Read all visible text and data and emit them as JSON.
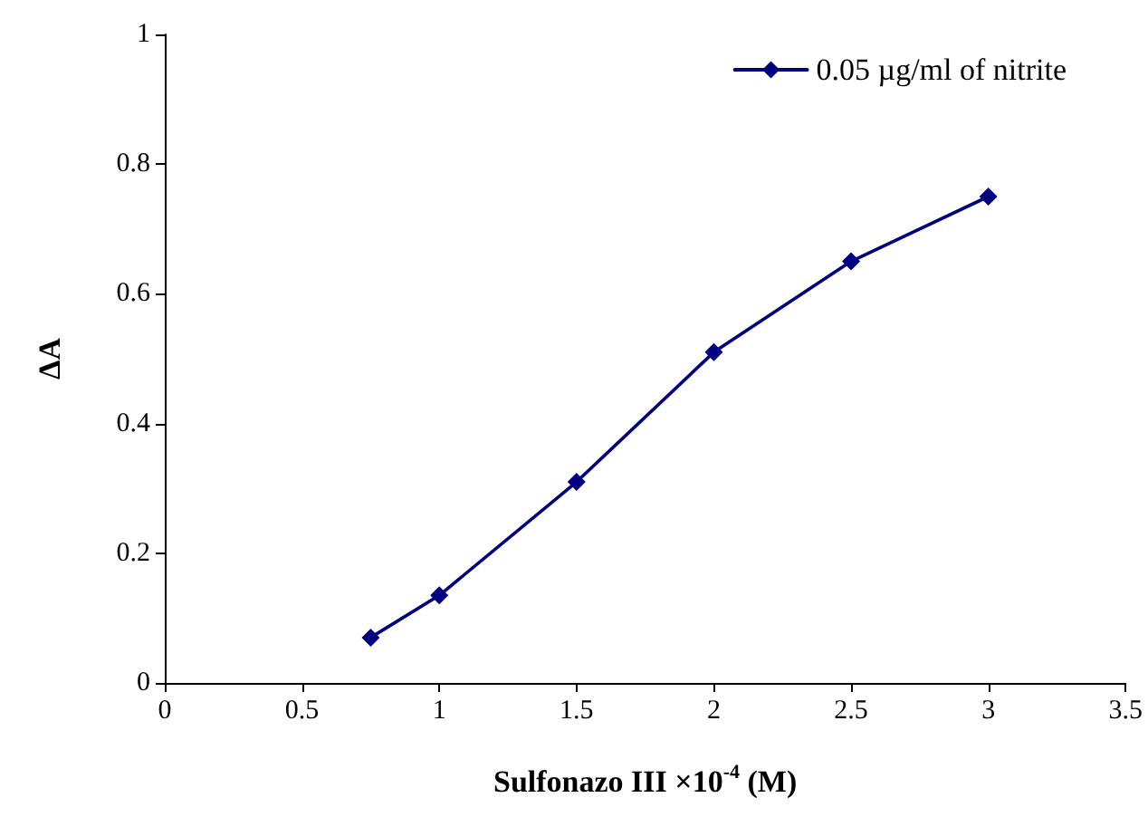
{
  "chart_data": {
    "type": "line",
    "xlabel": "Sulfonazo III ×10$^{-4}$ (M)",
    "ylabel": "ΔA",
    "x": [
      0.75,
      1,
      1.5,
      2,
      2.5,
      3
    ],
    "series": [
      {
        "name": "0.05 µg/ml of nitrite",
        "color": "#000080",
        "values": [
          0.07,
          0.135,
          0.31,
          0.51,
          0.65,
          0.75
        ]
      }
    ],
    "xlim": [
      0,
      3.5
    ],
    "xticks": [
      0,
      0.5,
      1,
      1.5,
      2,
      2.5,
      3,
      3.5
    ],
    "ylim": [
      0,
      1
    ],
    "yticks": [
      0,
      0.2,
      0.4,
      0.6,
      0.8,
      1
    ],
    "grid": false,
    "legend": "top right",
    "marker": "diamond",
    "line_style": "solid"
  }
}
